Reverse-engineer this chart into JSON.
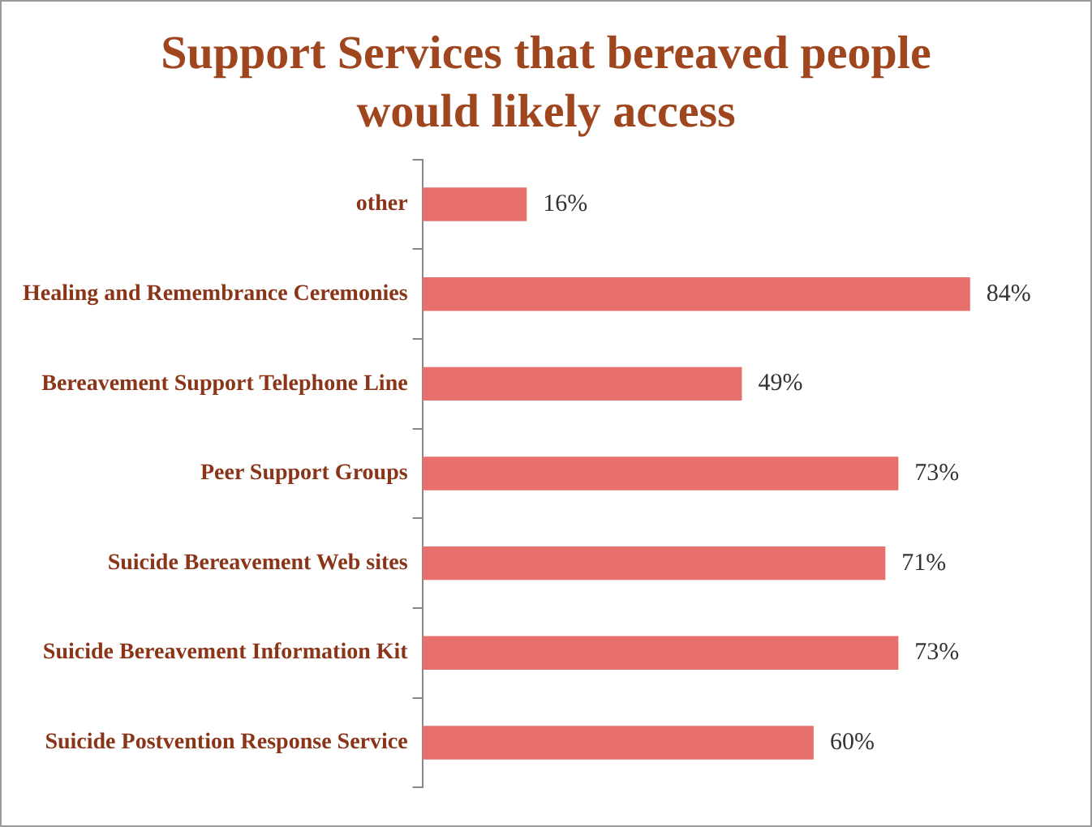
{
  "chart_data": {
    "type": "bar",
    "orientation": "horizontal",
    "title": "Support Services that bereaved people would likely access",
    "categories": [
      "other",
      "Healing and Remembrance Ceremonies",
      "Bereavement Support Telephone Line",
      "Peer Support Groups",
      "Suicide Bereavement Web sites",
      "Suicide Bereavement Information Kit",
      "Suicide Postvention Response Service"
    ],
    "values": [
      16,
      84,
      49,
      73,
      71,
      73,
      60
    ],
    "value_labels": [
      "16%",
      "84%",
      "49%",
      "73%",
      "71%",
      "73%",
      "60%"
    ],
    "color": "#e8706c",
    "legend": false
  }
}
